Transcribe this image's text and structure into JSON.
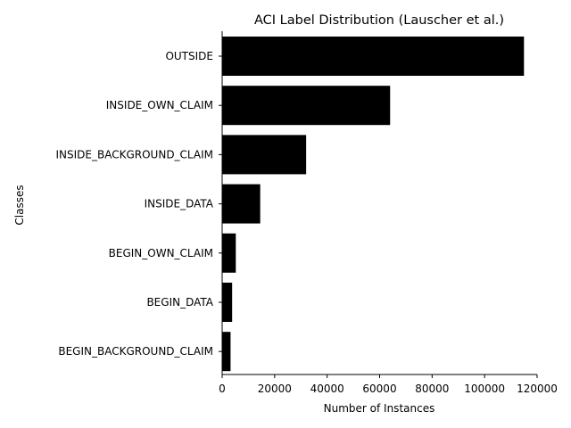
{
  "chart_data": {
    "type": "bar",
    "orientation": "horizontal",
    "title": "ACI Label Distribution (Lauscher et al.)",
    "xlabel": "Number of Instances",
    "ylabel": "Classes",
    "categories": [
      "OUTSIDE",
      "INSIDE_OWN_CLAIM",
      "INSIDE_BACKGROUND_CLAIM",
      "INSIDE_DATA",
      "BEGIN_OWN_CLAIM",
      "BEGIN_DATA",
      "BEGIN_BACKGROUND_CLAIM"
    ],
    "values": [
      115000,
      64000,
      32000,
      14500,
      5200,
      3800,
      3200
    ],
    "xlim": [
      0,
      120000
    ],
    "xticks": [
      0,
      20000,
      40000,
      60000,
      80000,
      100000,
      120000
    ],
    "xtick_labels": [
      "0",
      "20000",
      "40000",
      "60000",
      "80000",
      "100000",
      "120000"
    ],
    "grid": false,
    "legend": "none",
    "colors": {
      "bar": "#000000",
      "axis": "#000000",
      "background": "#ffffff"
    }
  }
}
